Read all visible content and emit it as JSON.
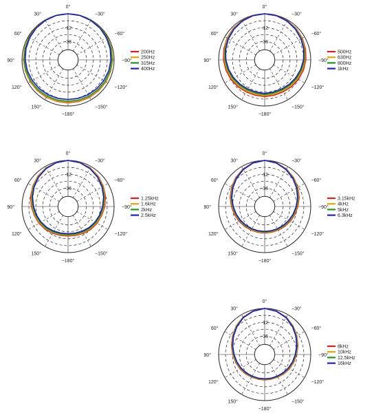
{
  "chart_data": [
    {
      "type": "polar-line",
      "angle_labels": [
        "0°",
        "30°",
        "−30°",
        "60°",
        "−60°",
        "90°",
        "−90°",
        "120°",
        "−120°",
        "150°",
        "−150°",
        "−180°"
      ],
      "radial_labels": [
        "-12",
        "-36"
      ],
      "series": [
        {
          "name": "200Hz",
          "color": "#e41a1c",
          "values": [
            0,
            0,
            -0.2,
            -0.5,
            -0.8,
            -1.2,
            -1.6,
            -2.2,
            -2.6,
            -3.0,
            -3.3,
            -3.5,
            -3.6
          ]
        },
        {
          "name": "250Hz",
          "color": "#e3a400",
          "values": [
            0,
            0,
            -0.2,
            -0.6,
            -1.0,
            -1.4,
            -1.9,
            -2.5,
            -3.0,
            -3.5,
            -3.8,
            -4.0,
            -4.1
          ]
        },
        {
          "name": "315Hz",
          "color": "#1a9a1a",
          "values": [
            0,
            -0.1,
            -0.3,
            -0.8,
            -1.3,
            -1.8,
            -2.4,
            -3.0,
            -3.7,
            -4.3,
            -4.8,
            -5.1,
            -5.2
          ]
        },
        {
          "name": "400Hz",
          "color": "#1c1cc8",
          "values": [
            0,
            -0.2,
            -0.6,
            -1.2,
            -2.0,
            -2.8,
            -3.6,
            -4.4,
            -5.3,
            -6.0,
            -6.6,
            -7.0,
            -7.2
          ]
        }
      ],
      "legend": "right"
    },
    {
      "type": "polar-line",
      "angle_labels": [
        "0°",
        "30°",
        "−30°",
        "60°",
        "−60°",
        "90°",
        "−90°",
        "120°",
        "−120°",
        "150°",
        "−150°",
        "−180°"
      ],
      "radial_labels": [
        "-12",
        "-36"
      ],
      "series": [
        {
          "name": "500Hz",
          "color": "#e41a1c",
          "values": [
            0,
            -0.2,
            -0.8,
            -1.8,
            -3.0,
            -4.2,
            -5.4,
            -6.7,
            -8.0,
            -9.2,
            -10.2,
            -10.6,
            -10.5
          ]
        },
        {
          "name": "630Hz",
          "color": "#e3a400",
          "values": [
            0,
            -0.3,
            -1.0,
            -2.2,
            -3.6,
            -5.0,
            -6.4,
            -7.8,
            -9.2,
            -10.5,
            -11.4,
            -11.8,
            -11.6
          ]
        },
        {
          "name": "800Hz",
          "color": "#1a9a1a",
          "values": [
            0,
            -0.3,
            -1.2,
            -2.6,
            -4.1,
            -5.7,
            -7.2,
            -8.8,
            -10.3,
            -11.6,
            -12.6,
            -13.0,
            -12.7
          ]
        },
        {
          "name": "1kHz",
          "color": "#1c1cc8",
          "values": [
            0,
            -0.4,
            -1.4,
            -3.0,
            -4.6,
            -6.3,
            -8.0,
            -9.8,
            -11.4,
            -12.8,
            -13.8,
            -14.2,
            -13.9
          ]
        }
      ],
      "legend": "right"
    },
    {
      "type": "polar-line",
      "angle_labels": [
        "0°",
        "30°",
        "−30°",
        "60°",
        "−60°",
        "90°",
        "−90°",
        "120°",
        "−120°",
        "150°",
        "−150°",
        "−180°"
      ],
      "radial_labels": [
        "-12",
        "-36"
      ],
      "series": [
        {
          "name": "1.25kHz",
          "color": "#e41a1c",
          "values": [
            0,
            -0.5,
            -1.8,
            -3.8,
            -6.0,
            -8.2,
            -10.4,
            -12.5,
            -14.0,
            -15.5,
            -17.0,
            -18.0,
            -18.5
          ]
        },
        {
          "name": "1.6kHz",
          "color": "#e3a400",
          "values": [
            0,
            -0.6,
            -2.0,
            -4.2,
            -6.6,
            -8.9,
            -11.2,
            -13.2,
            -14.8,
            -16.3,
            -17.8,
            -18.8,
            -19.3
          ]
        },
        {
          "name": "2kHz",
          "color": "#1a9a1a",
          "values": [
            0,
            -0.7,
            -2.3,
            -4.6,
            -7.1,
            -9.6,
            -12.0,
            -14.0,
            -15.7,
            -17.2,
            -18.6,
            -19.6,
            -20.0
          ]
        },
        {
          "name": "2.5kHz",
          "color": "#1c1cc8",
          "values": [
            0,
            -0.8,
            -2.6,
            -5.0,
            -7.7,
            -10.3,
            -12.8,
            -14.8,
            -16.6,
            -18.2,
            -19.6,
            -20.6,
            -21.0
          ]
        }
      ],
      "legend": "right"
    },
    {
      "type": "polar-line",
      "angle_labels": [
        "0°",
        "30°",
        "−30°",
        "60°",
        "−60°",
        "90°",
        "−90°",
        "120°",
        "−120°",
        "150°",
        "−150°",
        "−180°"
      ],
      "radial_labels": [
        "-12",
        "-36"
      ],
      "series": [
        {
          "name": "3.15kHz",
          "color": "#e41a1c",
          "values": [
            0,
            -0.9,
            -3.0,
            -5.8,
            -8.8,
            -11.6,
            -14.3,
            -16.6,
            -18.4,
            -19.9,
            -21.0,
            -21.6,
            -21.8
          ]
        },
        {
          "name": "4kHz",
          "color": "#e3a400",
          "values": [
            0,
            -1.0,
            -3.3,
            -6.2,
            -9.3,
            -12.2,
            -15.0,
            -17.3,
            -19.1,
            -20.5,
            -21.6,
            -22.2,
            -22.4
          ]
        },
        {
          "name": "5kHz",
          "color": "#1a9a1a",
          "values": [
            0,
            -1.1,
            -3.5,
            -6.6,
            -9.8,
            -12.8,
            -15.6,
            -17.9,
            -19.7,
            -21.1,
            -22.2,
            -22.8,
            -23.0
          ]
        },
        {
          "name": "6.3kHz",
          "color": "#1c1cc8",
          "values": [
            0,
            -1.2,
            -3.8,
            -7.0,
            -10.3,
            -13.4,
            -16.2,
            -18.5,
            -20.3,
            -21.7,
            -22.8,
            -23.4,
            -23.6
          ]
        }
      ],
      "legend": "right"
    },
    {
      "type": "polar-line",
      "angle_labels": [
        "0°",
        "30°",
        "−30°",
        "60°",
        "−60°",
        "90°",
        "−90°",
        "120°",
        "−120°",
        "150°",
        "−150°",
        "−180°"
      ],
      "radial_labels": [
        "-12",
        "-36"
      ],
      "series": [
        {
          "name": "8kHz",
          "color": "#e41a1c",
          "values": [
            0,
            -1.2,
            -3.2,
            -6.5,
            -10.0,
            -13.0,
            -15.8,
            -17.8,
            -19.5,
            -21.0,
            -22.2,
            -22.8,
            -23.0
          ]
        },
        {
          "name": "10kHz",
          "color": "#e3a400",
          "values": [
            0,
            -1.3,
            -3.4,
            -6.8,
            -10.4,
            -13.5,
            -16.2,
            -18.3,
            -20.0,
            -21.5,
            -22.6,
            -23.2,
            -23.4
          ]
        },
        {
          "name": "12.5kHz",
          "color": "#1a9a1a",
          "values": [
            0,
            -1.4,
            -3.6,
            -7.1,
            -10.7,
            -13.9,
            -16.7,
            -18.8,
            -20.5,
            -21.9,
            -23.0,
            -23.6,
            -23.8
          ]
        },
        {
          "name": "16kHz",
          "color": "#1c1cc8",
          "values": [
            0,
            -1.5,
            -3.9,
            -7.5,
            -11.1,
            -14.4,
            -17.2,
            -19.3,
            -21.0,
            -22.4,
            -23.4,
            -24.0,
            -24.2
          ]
        }
      ],
      "legend": "right"
    }
  ]
}
